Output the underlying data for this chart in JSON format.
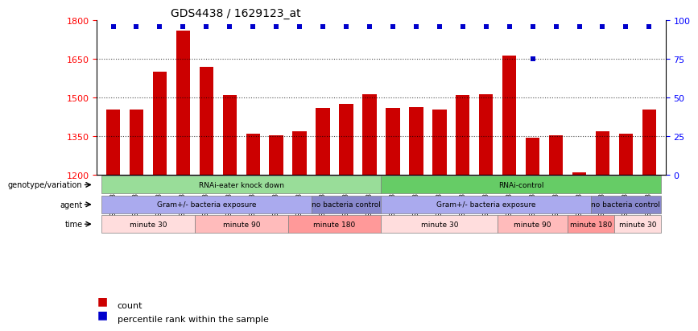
{
  "title": "GDS4438 / 1629123_at",
  "samples": [
    "GSM783343",
    "GSM783344",
    "GSM783345",
    "GSM783349",
    "GSM783350",
    "GSM783351",
    "GSM783355",
    "GSM783356",
    "GSM783357",
    "GSM783337",
    "GSM783338",
    "GSM783339",
    "GSM783340",
    "GSM783341",
    "GSM783342",
    "GSM783346",
    "GSM783347",
    "GSM783348",
    "GSM783352",
    "GSM783353",
    "GSM783354",
    "GSM783334",
    "GSM783335",
    "GSM783336"
  ],
  "counts": [
    1455,
    1455,
    1600,
    1760,
    1620,
    1510,
    1360,
    1355,
    1370,
    1460,
    1475,
    1515,
    1460,
    1465,
    1455,
    1510,
    1515,
    1665,
    1345,
    1355,
    1210,
    1370,
    1360,
    1455
  ],
  "percentiles": [
    95,
    95,
    95,
    95,
    95,
    95,
    95,
    95,
    95,
    95,
    95,
    95,
    95,
    95,
    95,
    95,
    95,
    95,
    75,
    95,
    95,
    95,
    95,
    95
  ],
  "ymin": 1200,
  "ymax": 1800,
  "yticks": [
    1200,
    1350,
    1500,
    1650,
    1800
  ],
  "ytick_labels": [
    "1200",
    "1350",
    "1500",
    "1650",
    "1800"
  ],
  "right_yticks": [
    0,
    25,
    50,
    75,
    100
  ],
  "bar_color": "#cc0000",
  "dot_color": "#0000cc",
  "bar_width": 0.6,
  "genotype_groups": [
    {
      "label": "RNAi-eater knock down",
      "start": 0,
      "end": 12,
      "color": "#99dd99"
    },
    {
      "label": "RNAi-control",
      "start": 12,
      "end": 24,
      "color": "#66cc66"
    }
  ],
  "agent_groups": [
    {
      "label": "Gram+/- bacteria exposure",
      "start": 0,
      "end": 9,
      "color": "#aaaaee"
    },
    {
      "label": "no bacteria control",
      "start": 9,
      "end": 12,
      "color": "#8888cc"
    },
    {
      "label": "Gram+/- bacteria exposure",
      "start": 12,
      "end": 21,
      "color": "#aaaaee"
    },
    {
      "label": "no bacteria control",
      "start": 21,
      "end": 24,
      "color": "#8888cc"
    }
  ],
  "time_groups": [
    {
      "label": "minute 30",
      "start": 0,
      "end": 4,
      "color": "#ffdddd"
    },
    {
      "label": "minute 90",
      "start": 4,
      "end": 8,
      "color": "#ffbbbb"
    },
    {
      "label": "minute 180",
      "start": 8,
      "end": 12,
      "color": "#ff9999"
    },
    {
      "label": "minute 30",
      "start": 12,
      "end": 17,
      "color": "#ffdddd"
    },
    {
      "label": "minute 90",
      "start": 17,
      "end": 20,
      "color": "#ffbbbb"
    },
    {
      "label": "minute 180",
      "start": 20,
      "end": 22,
      "color": "#ff9999"
    },
    {
      "label": "minute 30",
      "start": 22,
      "end": 24,
      "color": "#ffdddd"
    }
  ],
  "row_labels": [
    "genotype/variation",
    "agent",
    "time"
  ],
  "legend_items": [
    {
      "label": "count",
      "color": "#cc0000"
    },
    {
      "label": "percentile rank within the sample",
      "color": "#0000cc"
    }
  ]
}
